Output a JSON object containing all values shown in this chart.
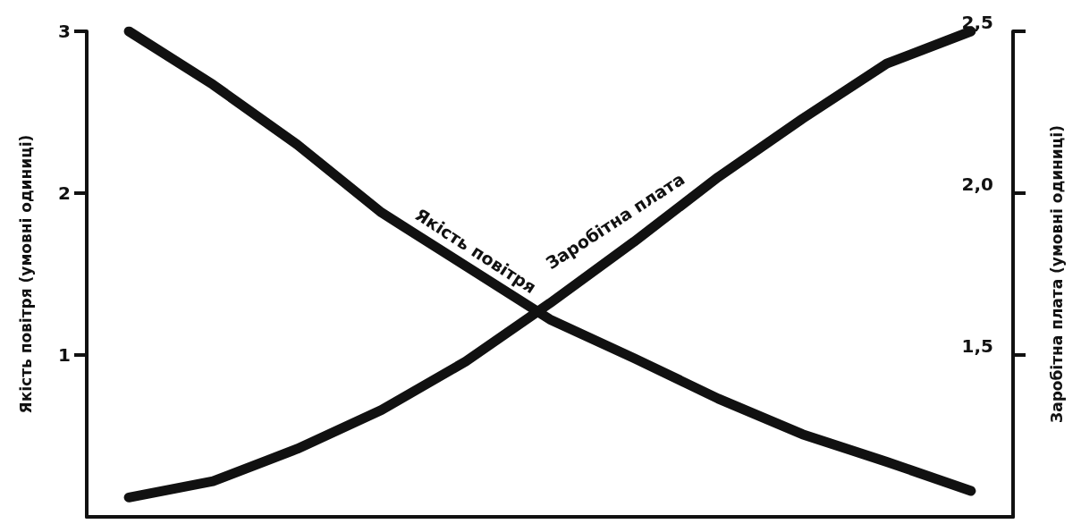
{
  "chart_data": {
    "type": "line",
    "categories": [
      null,
      null,
      null,
      null,
      null,
      null,
      null,
      null,
      null,
      null,
      null
    ],
    "series": [
      {
        "name": "Якість повітря",
        "color": "#111111",
        "values": [
          3.0,
          2.67,
          2.3,
          1.88,
          1.55,
          1.22,
          0.98,
          0.73,
          0.51,
          0.34,
          0.16
        ]
      },
      {
        "name": "Заробітна плата",
        "color": "#111111",
        "axis": "y2",
        "values": [
          1.06,
          1.11,
          1.21,
          1.33,
          1.48,
          1.66,
          1.85,
          2.05,
          2.23,
          2.4,
          2.5
        ]
      }
    ],
    "ylabel": "Якість повітря (умовні одиниці)",
    "y2label": "Заробітна плата (умовні одиниці)",
    "ylim": [
      0,
      3
    ],
    "yticks": [
      1,
      2,
      3
    ],
    "y2lim": [
      1.0,
      2.5
    ],
    "y2ticks": [
      {
        "value": 1.5,
        "label": "1,5"
      },
      {
        "value": 2.0,
        "label": "2,0"
      },
      {
        "value": 2.5,
        "label": "2,5"
      }
    ],
    "grid": false,
    "legend": false,
    "marker": "none",
    "line_style": "solid"
  }
}
